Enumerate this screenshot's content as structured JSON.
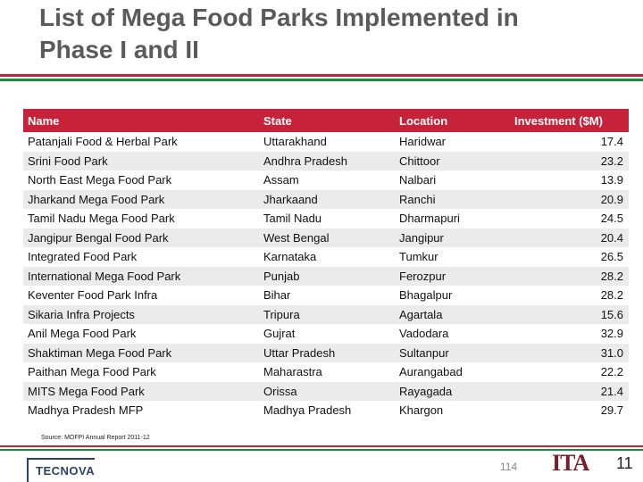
{
  "slide": {
    "title_line1": "List of Mega Food Parks Implemented in",
    "title_line2": "Phase I and II"
  },
  "colors": {
    "stripe_red": "#c6233a",
    "stripe_green": "#1f8a3b",
    "header_bg": "#c6233a",
    "row_alt_bg": "#ebebeb",
    "brand_navy": "#2c3f71",
    "ita_maroon": "#7a1c2b"
  },
  "table": {
    "headers": [
      "Name",
      "State",
      "Location",
      "Investment ($M)"
    ],
    "rows": [
      [
        "Patanjali Food & Herbal Park",
        "Uttarakhand",
        "Haridwar",
        "17.4"
      ],
      [
        "Srini Food Park",
        "Andhra Pradesh",
        "Chittoor",
        "23.2"
      ],
      [
        "North East Mega Food Park",
        "Assam",
        "Nalbari",
        "13.9"
      ],
      [
        "Jharkand Mega Food Park",
        "Jharkaand",
        "Ranchi",
        "20.9"
      ],
      [
        "Tamil Nadu Mega Food Park",
        "Tamil Nadu",
        "Dharmapuri",
        "24.5"
      ],
      [
        "Jangipur Bengal Food Park",
        "West Bengal",
        "Jangipur",
        "20.4"
      ],
      [
        "Integrated Food Park",
        "Karnataka",
        "Tumkur",
        "26.5"
      ],
      [
        "International Mega Food Park",
        "Punjab",
        "Ferozpur",
        "28.2"
      ],
      [
        "Keventer Food Park Infra",
        "Bihar",
        "Bhagalpur",
        "28.2"
      ],
      [
        "Sikaria Infra Projects",
        "Tripura",
        "Agartala",
        "15.6"
      ],
      [
        "Anil Mega Food Park",
        "Gujrat",
        "Vadodara",
        "32.9"
      ],
      [
        "Shaktiman Mega Food Park",
        "Uttar Pradesh",
        "Sultanpur",
        "31.0"
      ],
      [
        "Paithan Mega Food Park",
        "Maharastra",
        "Aurangabad",
        "22.2"
      ],
      [
        "MITS Mega Food Park",
        "Orissa",
        "Rayagada",
        "21.4"
      ],
      [
        "Madhya Pradesh MFP",
        "Madhya Pradesh",
        "Khargon",
        "29.7"
      ]
    ]
  },
  "source": "Source: MOFPI Annual Report 2011-12",
  "footer": {
    "tecnova_label": "TECNOVA",
    "ita_label": "ITA",
    "page_number": "11",
    "page_number_small": "114"
  }
}
